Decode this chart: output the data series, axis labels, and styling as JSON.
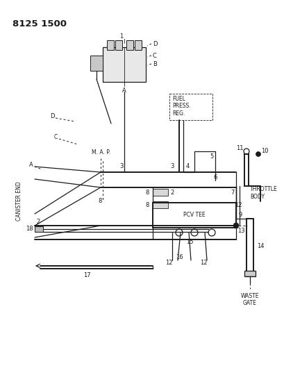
{
  "title": "8125 1500",
  "bg_color": "#ffffff",
  "line_color": "#1a1a1a",
  "text_color": "#1a1a1a",
  "figsize": [
    4.1,
    5.33
  ],
  "dpi": 100,
  "labels": {
    "title": "8125 1500",
    "fuel_press": "FUEL\nPRESS.\nREG.",
    "throttle_body": "THROTTLE\nBODY",
    "waste_gate": "WASTE\nGATE",
    "pcv_tee": "PCV TEE",
    "map": "M. A. P.",
    "canister_end": "CANISTER END"
  }
}
